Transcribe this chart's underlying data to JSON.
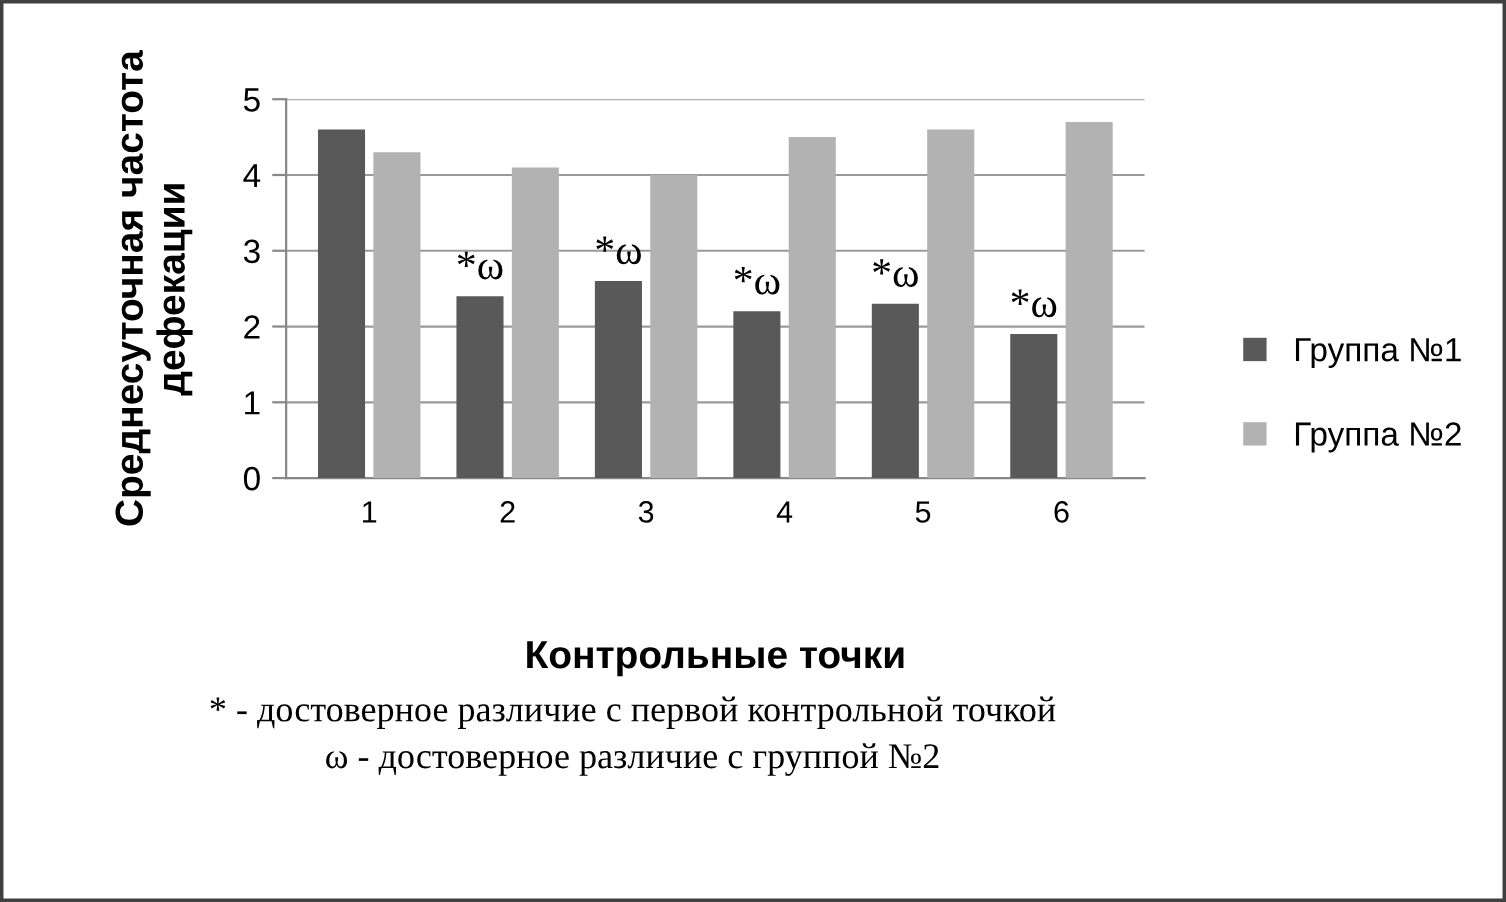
{
  "chart_data": {
    "type": "bar",
    "xlabel": "Контрольные точки",
    "ylabel": "Среднесуточная частота\nдефекации",
    "categories": [
      "1",
      "2",
      "3",
      "4",
      "5",
      "6"
    ],
    "series": [
      {
        "name": "Группа №1",
        "color": "#595959",
        "values": [
          4.6,
          2.4,
          2.6,
          2.2,
          2.3,
          1.9
        ]
      },
      {
        "name": "Группа №2",
        "color": "#b2b2b2",
        "values": [
          4.3,
          4.1,
          4.0,
          4.5,
          4.6,
          4.7
        ]
      }
    ],
    "ylim": [
      0,
      5
    ],
    "yticks": [
      0,
      1,
      2,
      3,
      4,
      5
    ],
    "grid": "y",
    "legend": "right",
    "annotations": [
      {
        "text": "*ω",
        "x": "2",
        "y": 2.4
      },
      {
        "text": "*ω",
        "x": "3",
        "y": 2.6
      },
      {
        "text": "*ω",
        "x": "4",
        "y": 2.2
      },
      {
        "text": "*ω",
        "x": "5",
        "y": 2.3
      },
      {
        "text": "*ω",
        "x": "6",
        "y": 1.9
      },
      "* - достоверное различие с первой контрольной точкой",
      "ω - достоверное различие с группой №2"
    ]
  }
}
